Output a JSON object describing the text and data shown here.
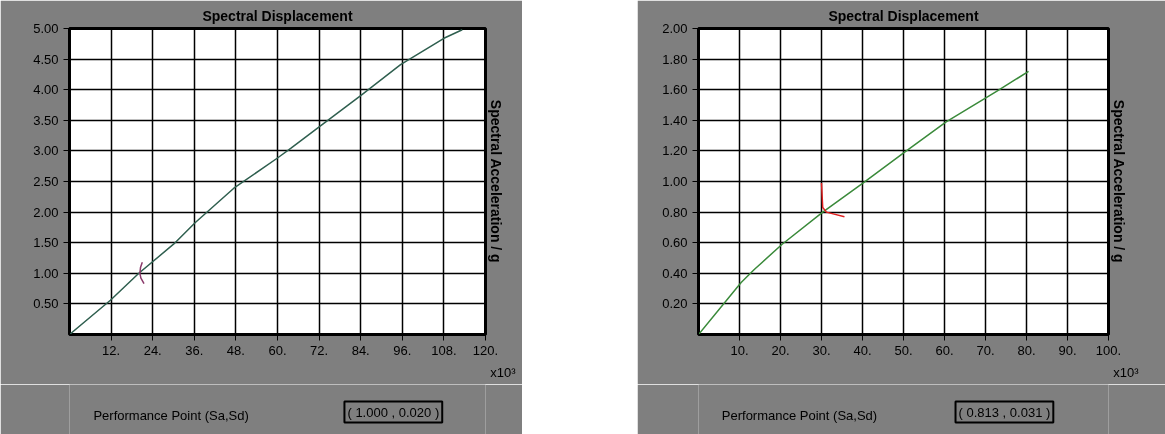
{
  "chart_data": [
    {
      "type": "line",
      "title": "Spectral Displacement",
      "xlabel": "x10³",
      "ylabel": "Spectral Acceleration / g",
      "xlim": [
        0,
        120
      ],
      "ylim": [
        0,
        5
      ],
      "xticks": [
        {
          "value": 12,
          "label": "12."
        },
        {
          "value": 24,
          "label": "24."
        },
        {
          "value": 36,
          "label": "36."
        },
        {
          "value": 48,
          "label": "48."
        },
        {
          "value": 60,
          "label": "60."
        },
        {
          "value": 72,
          "label": "72."
        },
        {
          "value": 84,
          "label": "84."
        },
        {
          "value": 96,
          "label": "96."
        },
        {
          "value": 108,
          "label": "108."
        },
        {
          "value": 120,
          "label": "120."
        }
      ],
      "yticks": [
        {
          "value": 0.5,
          "label": "0.50"
        },
        {
          "value": 1,
          "label": "1.00"
        },
        {
          "value": 1.5,
          "label": "1.50"
        },
        {
          "value": 2,
          "label": "2.00"
        },
        {
          "value": 2.5,
          "label": "2.50"
        },
        {
          "value": 3,
          "label": "3.00"
        },
        {
          "value": 3.5,
          "label": "3.50"
        },
        {
          "value": 4,
          "label": "4.00"
        },
        {
          "value": 4.5,
          "label": "4.50"
        },
        {
          "value": 5,
          "label": "5.00"
        }
      ],
      "grid": true,
      "series": [
        {
          "color": "#2f5f4f",
          "x": [
            0,
            11.8,
            20,
            30.1,
            36.3,
            47.4,
            59.9,
            63.8,
            72.4,
            83.9,
            95.5,
            108,
            113.3
          ],
          "values": [
            0,
            0.56,
            1.0,
            1.48,
            1.83,
            2.39,
            2.88,
            3.04,
            3.41,
            3.9,
            4.41,
            4.84,
            4.98
          ]
        },
        {
          "color": "#8b3a6b",
          "x": [
            21.5,
            20.6,
            20.3,
            20.5,
            21
          ],
          "values": [
            0.83,
            0.92,
            1.0,
            1.1,
            1.18
          ]
        }
      ],
      "annotations": [
        "Performance Point (Sa,Sd)",
        "( 1.000 , 0.020 )"
      ]
    },
    {
      "type": "line",
      "title": "Spectral Displacement",
      "xlabel": "x10³",
      "ylabel": "Spectral Acceleration / g",
      "xlim": [
        0,
        100
      ],
      "ylim": [
        0,
        2
      ],
      "xticks": [
        {
          "value": 10,
          "label": "10."
        },
        {
          "value": 20,
          "label": "20."
        },
        {
          "value": 30,
          "label": "30."
        },
        {
          "value": 40,
          "label": "40."
        },
        {
          "value": 50,
          "label": "50."
        },
        {
          "value": 60,
          "label": "60."
        },
        {
          "value": 70,
          "label": "70."
        },
        {
          "value": 80,
          "label": "80."
        },
        {
          "value": 90,
          "label": "90."
        },
        {
          "value": 100,
          "label": "100."
        }
      ],
      "yticks": [
        {
          "value": 0.2,
          "label": "0.20"
        },
        {
          "value": 0.4,
          "label": "0.40"
        },
        {
          "value": 0.6,
          "label": "0.60"
        },
        {
          "value": 0.8,
          "label": "0.80"
        },
        {
          "value": 1.0,
          "label": "1.00"
        },
        {
          "value": 1.2,
          "label": "1.20"
        },
        {
          "value": 1.4,
          "label": "1.40"
        },
        {
          "value": 1.6,
          "label": "1.60"
        },
        {
          "value": 1.8,
          "label": "1.80"
        },
        {
          "value": 2.0,
          "label": "2.00"
        }
      ],
      "grid": true,
      "series": [
        {
          "color": "#3a8a3a",
          "x": [
            0,
            10.4,
            13.6,
            20.4,
            30.3,
            40.1,
            50.2,
            60.4,
            72.8,
            80.5
          ],
          "values": [
            0,
            0.34,
            0.425,
            0.59,
            0.8,
            0.99,
            1.19,
            1.39,
            1.59,
            1.72
          ]
        },
        {
          "color": "#e02020",
          "x": [
            30.0,
            30.3,
            31.2,
            32.6,
            35.6
          ],
          "values": [
            0.99,
            0.83,
            0.8,
            0.79,
            0.77
          ]
        }
      ],
      "annotations": [
        "Performance Point (Sa,Sd)",
        "( 0.813 , 0.031 )"
      ]
    }
  ]
}
